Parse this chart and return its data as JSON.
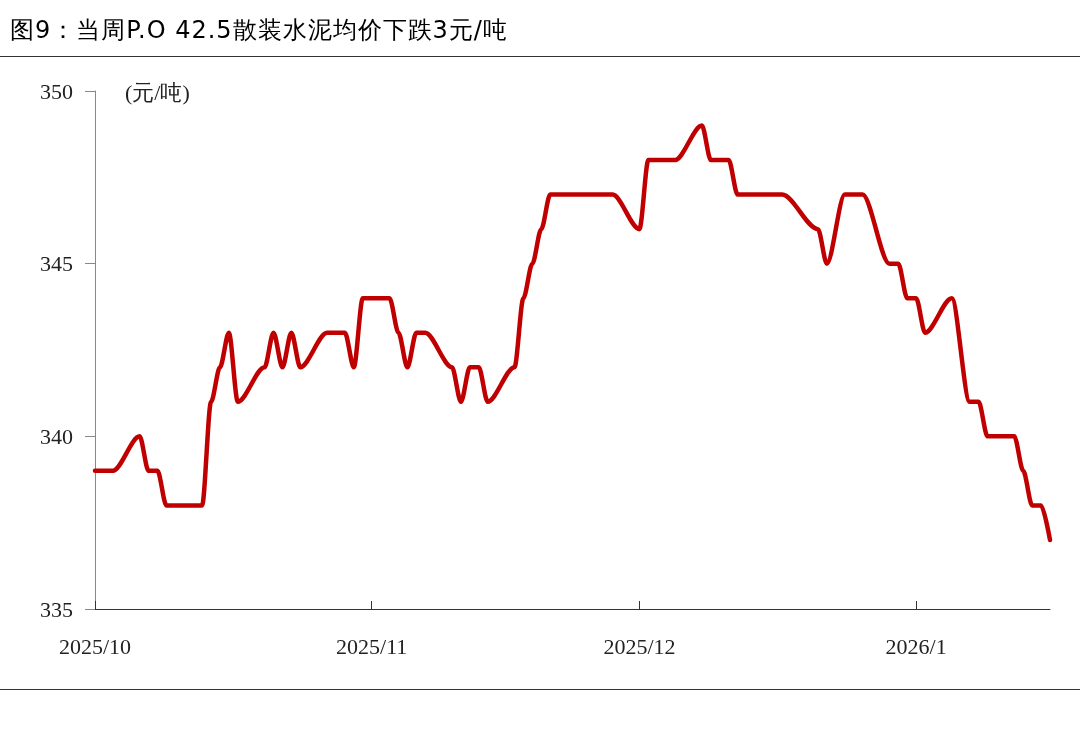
{
  "chart_data": {
    "type": "line",
    "title": "图9：当周P.O 42.5散装水泥均价下跌3元/吨",
    "ylabel": "(元/吨)",
    "x": [
      "2025-10-01",
      "2025-10-03",
      "2025-10-06",
      "2025-10-07",
      "2025-10-08",
      "2025-10-09",
      "2025-10-13",
      "2025-10-14",
      "2025-10-15",
      "2025-10-16",
      "2025-10-17",
      "2025-10-20",
      "2025-10-21",
      "2025-10-22",
      "2025-10-23",
      "2025-10-24",
      "2025-10-27",
      "2025-10-29",
      "2025-10-30",
      "2025-10-31",
      "2025-11-03",
      "2025-11-04",
      "2025-11-05",
      "2025-11-06",
      "2025-11-07",
      "2025-11-10",
      "2025-11-11",
      "2025-11-12",
      "2025-11-13",
      "2025-11-14",
      "2025-11-17",
      "2025-11-18",
      "2025-11-19",
      "2025-11-20",
      "2025-11-21",
      "2025-11-28",
      "2025-12-01",
      "2025-12-02",
      "2025-12-05",
      "2025-12-08",
      "2025-12-09",
      "2025-12-11",
      "2025-12-12",
      "2025-12-17",
      "2025-12-21",
      "2025-12-22",
      "2025-12-24",
      "2025-12-26",
      "2025-12-29",
      "2025-12-30",
      "2025-12-31",
      "2026-01-01",
      "2026-01-02",
      "2026-01-05",
      "2026-01-07",
      "2026-01-08",
      "2026-01-09",
      "2026-01-12",
      "2026-01-13",
      "2026-01-14",
      "2026-01-15",
      "2026-01-16"
    ],
    "series": [
      {
        "color": "#c00000",
        "values": [
          339,
          339,
          340,
          339,
          339,
          338,
          338,
          341,
          342,
          343,
          341,
          342,
          343,
          342,
          343,
          342,
          343,
          343,
          342,
          344,
          344,
          343,
          342,
          343,
          343,
          342,
          341,
          342,
          342,
          341,
          342,
          344,
          345,
          346,
          347,
          347,
          346,
          348,
          348,
          349,
          348,
          348,
          347,
          347,
          346,
          345,
          347,
          347,
          345,
          345,
          344,
          344,
          343,
          344,
          341,
          341,
          340,
          340,
          339,
          338,
          338,
          337
        ]
      }
    ],
    "xlim": [
      "2025-10-01",
      "2026-01-16"
    ],
    "xticks": [
      {
        "value": "2025-10-01",
        "label": "2025/10"
      },
      {
        "value": "2025-11-01",
        "label": "2025/11"
      },
      {
        "value": "2025-12-01",
        "label": "2025/12"
      },
      {
        "value": "2026-01-01",
        "label": "2026/1"
      }
    ],
    "ylim": [
      335,
      350
    ],
    "yticks": [
      335,
      340,
      345,
      350
    ],
    "grid": false,
    "marker": "none",
    "line_style": "solid"
  }
}
